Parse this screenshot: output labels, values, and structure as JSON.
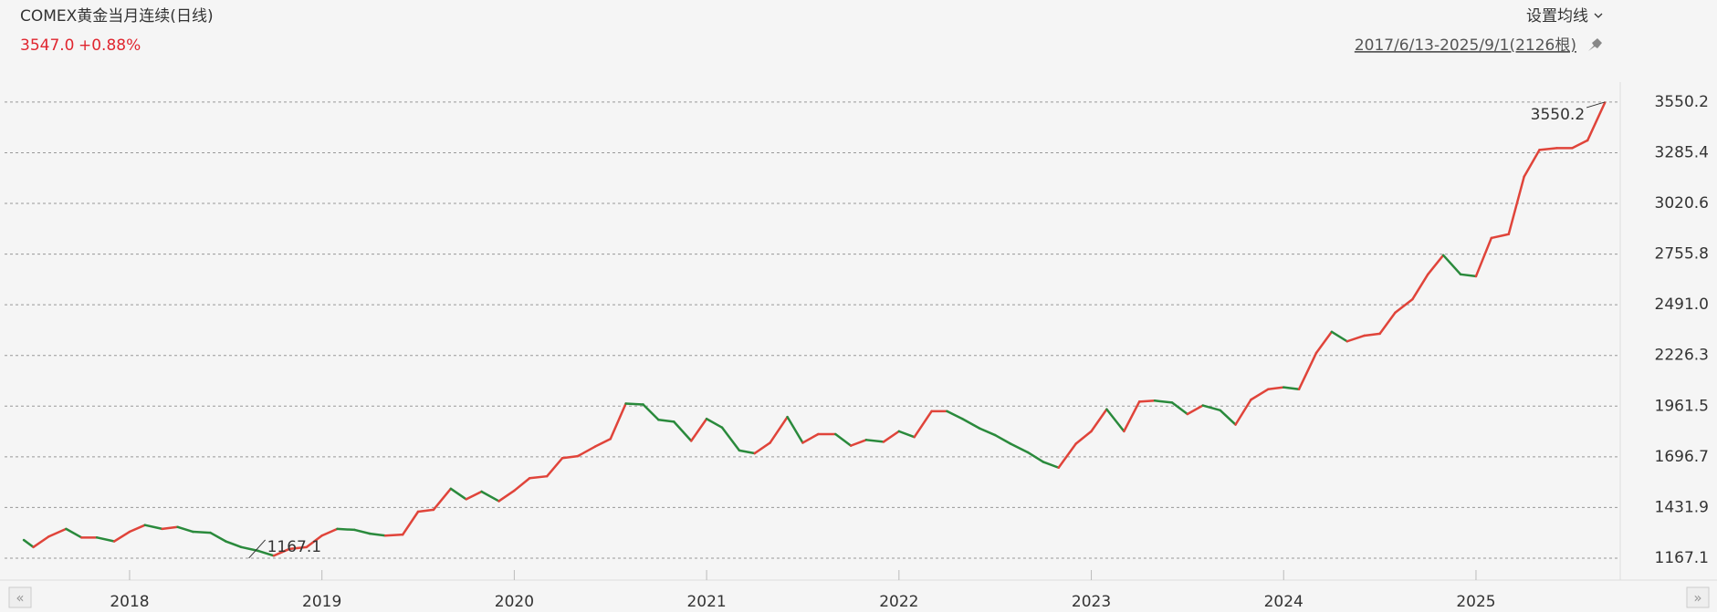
{
  "header": {
    "title": "COMEX黄金当月连续(日线)",
    "price": "3547.0",
    "change": "+0.88%",
    "ma_button": "设置均线",
    "range": "2017/6/13-2025/9/1(2126根)"
  },
  "chart_data": {
    "type": "line",
    "up_color": "#e0443a",
    "down_color": "#2a8a3c",
    "grid": true,
    "x": [
      2017.45,
      2017.5,
      2017.58,
      2017.67,
      2017.75,
      2017.83,
      2017.92,
      2018.0,
      2018.08,
      2018.17,
      2018.25,
      2018.33,
      2018.42,
      2018.5,
      2018.58,
      2018.67,
      2018.75,
      2018.83,
      2018.92,
      2019.0,
      2019.08,
      2019.17,
      2019.25,
      2019.33,
      2019.42,
      2019.5,
      2019.58,
      2019.67,
      2019.75,
      2019.83,
      2019.92,
      2020.0,
      2020.08,
      2020.17,
      2020.25,
      2020.33,
      2020.42,
      2020.5,
      2020.58,
      2020.67,
      2020.75,
      2020.83,
      2020.92,
      2021.0,
      2021.08,
      2021.17,
      2021.25,
      2021.33,
      2021.42,
      2021.5,
      2021.58,
      2021.67,
      2021.75,
      2021.83,
      2021.92,
      2022.0,
      2022.08,
      2022.17,
      2022.25,
      2022.33,
      2022.42,
      2022.5,
      2022.58,
      2022.67,
      2022.75,
      2022.83,
      2022.92,
      2023.0,
      2023.08,
      2023.17,
      2023.25,
      2023.33,
      2023.42,
      2023.5,
      2023.58,
      2023.67,
      2023.75,
      2023.83,
      2023.92,
      2024.0,
      2024.08,
      2024.17,
      2024.25,
      2024.33,
      2024.42,
      2024.5,
      2024.58,
      2024.67,
      2024.75,
      2024.83,
      2024.92,
      2025.0,
      2025.08,
      2025.17,
      2025.25,
      2025.33,
      2025.42,
      2025.5,
      2025.58,
      2025.67
    ],
    "values": [
      1262,
      1225,
      1280,
      1320,
      1275,
      1275,
      1255,
      1305,
      1340,
      1320,
      1330,
      1305,
      1300,
      1255,
      1225,
      1205,
      1180,
      1215,
      1225,
      1285,
      1320,
      1315,
      1295,
      1285,
      1290,
      1410,
      1420,
      1530,
      1475,
      1515,
      1465,
      1520,
      1585,
      1595,
      1690,
      1700,
      1750,
      1790,
      1975,
      1970,
      1890,
      1880,
      1780,
      1895,
      1850,
      1730,
      1715,
      1770,
      1905,
      1770,
      1815,
      1815,
      1755,
      1785,
      1775,
      1830,
      1800,
      1935,
      1935,
      1895,
      1845,
      1810,
      1765,
      1720,
      1670,
      1640,
      1765,
      1830,
      1945,
      1830,
      1985,
      1990,
      1980,
      1920,
      1965,
      1940,
      1865,
      1995,
      2050,
      2060,
      2050,
      2240,
      2350,
      2300,
      2330,
      2340,
      2450,
      2520,
      2650,
      2750,
      2650,
      2640,
      2840,
      2860,
      3160,
      3300,
      3310,
      3310,
      3350,
      3547
    ],
    "xlim": [
      2017.35,
      2025.75
    ],
    "xticks": [
      2018,
      2019,
      2020,
      2021,
      2022,
      2023,
      2024,
      2025
    ],
    "ylim": [
      1105,
      3607
    ],
    "yticks": [
      {
        "value": 1167.1,
        "label": "1167.1"
      },
      {
        "value": 1431.9,
        "label": "1431.9"
      },
      {
        "value": 1696.7,
        "label": "1696.7"
      },
      {
        "value": 1961.5,
        "label": "1961.5"
      },
      {
        "value": 2226.3,
        "label": "2226.3"
      },
      {
        "value": 2491.0,
        "label": "2491.0"
      },
      {
        "value": 2755.8,
        "label": "2755.8"
      },
      {
        "value": 3020.6,
        "label": "3020.6"
      },
      {
        "value": 3285.4,
        "label": "3285.4"
      },
      {
        "value": 3550.2,
        "label": "3550.2"
      }
    ],
    "annotations": [
      {
        "label": "3550.2",
        "x": 2025.67,
        "y": 3550.2
      },
      {
        "label": "1167.1",
        "x": 2018.62,
        "y": 1167.1
      }
    ]
  }
}
